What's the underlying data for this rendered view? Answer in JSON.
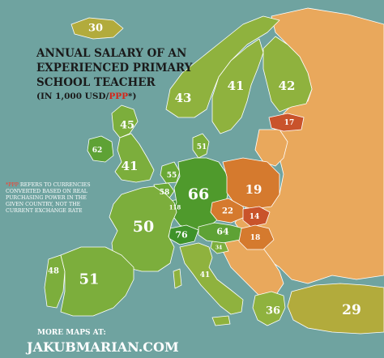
{
  "title": {
    "line1": "ANNUAL SALARY OF AN",
    "line2": "EXPERIENCED PRIMARY",
    "line3": "SCHOOL TEACHER",
    "line4_prefix": "(IN 1,000 USD/",
    "line4_ppp": "PPP",
    "line4_suffix": "*)"
  },
  "note": {
    "ppp": "*PPP",
    "line1_rest": " REFERS TO CURRENCIES",
    "line2": "CONVERTED BASED ON REAL",
    "line3": "PURCHASING POWER IN THE",
    "line4": "GIVEN COUNTRY, NOT THE",
    "line5": "CURRENT EXCHANGE RATE"
  },
  "footer": {
    "line1": "MORE MAPS AT:",
    "line2": "JAKUBMARIAN.COM"
  },
  "colors": {
    "sea": "#6fa3a0",
    "no_data": "#e9a85c",
    "mid_green": "#7cae3c",
    "high_green": "#4f9a2c",
    "top_green": "#3a8f28",
    "low_orange": "#d57a2e",
    "lowest_red": "#c9532b"
  },
  "countries": {
    "iceland": "30",
    "norway": "43",
    "sweden": "41",
    "finland": "42",
    "estonia": "17",
    "scotland": "45",
    "ireland": "62",
    "england": "41",
    "denmark": "51",
    "netherlands": "55",
    "belgium": "58",
    "luxembourg": "118",
    "germany": "66",
    "poland": "19",
    "czechia": "22",
    "slovakia": "14",
    "austria": "64",
    "hungary": "18",
    "slovenia": "34",
    "switzerland": "76",
    "france": "50",
    "portugal": "48",
    "spain": "51",
    "italy": "41",
    "greece": "36",
    "turkey": "29"
  }
}
